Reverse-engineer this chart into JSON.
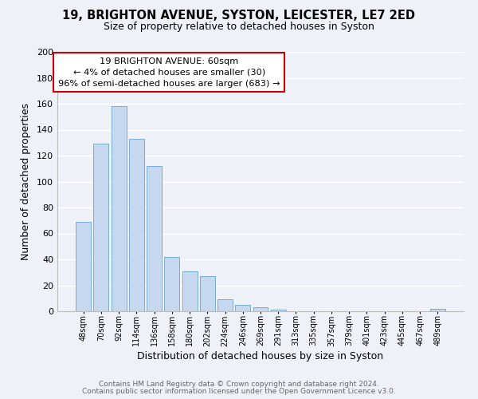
{
  "title": "19, BRIGHTON AVENUE, SYSTON, LEICESTER, LE7 2ED",
  "subtitle": "Size of property relative to detached houses in Syston",
  "xlabel": "Distribution of detached houses by size in Syston",
  "ylabel": "Number of detached properties",
  "bar_color": "#c5d8f0",
  "bar_edge_color": "#7aadd4",
  "background_color": "#eef2f8",
  "plot_bg_color": "#eef2f8",
  "categories": [
    "48sqm",
    "70sqm",
    "92sqm",
    "114sqm",
    "136sqm",
    "158sqm",
    "180sqm",
    "202sqm",
    "224sqm",
    "246sqm",
    "269sqm",
    "291sqm",
    "313sqm",
    "335sqm",
    "357sqm",
    "379sqm",
    "401sqm",
    "423sqm",
    "445sqm",
    "467sqm",
    "489sqm"
  ],
  "values": [
    69,
    129,
    158,
    133,
    112,
    42,
    31,
    27,
    9,
    5,
    3,
    1,
    0,
    0,
    0,
    0,
    0,
    0,
    0,
    0,
    2
  ],
  "ylim": [
    0,
    200
  ],
  "yticks": [
    0,
    20,
    40,
    60,
    80,
    100,
    120,
    140,
    160,
    180,
    200
  ],
  "annotation_title": "19 BRIGHTON AVENUE: 60sqm",
  "annotation_line1": "← 4% of detached houses are smaller (30)",
  "annotation_line2": "96% of semi-detached houses are larger (683) →",
  "annotation_box_color": "#ffffff",
  "annotation_border_color": "#cc0000",
  "footer_line1": "Contains HM Land Registry data © Crown copyright and database right 2024.",
  "footer_line2": "Contains public sector information licensed under the Open Government Licence v3.0.",
  "grid_color": "#ffffff"
}
